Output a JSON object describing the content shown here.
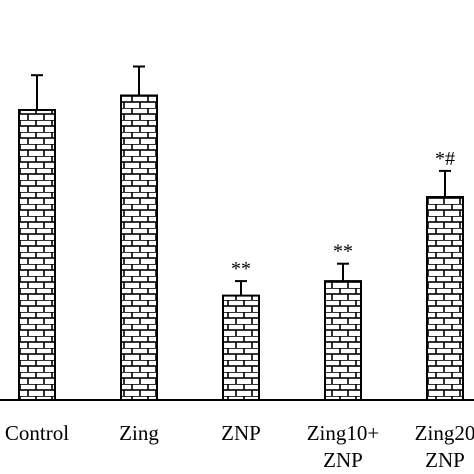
{
  "chart_data": {
    "type": "bar",
    "categories": [
      "Control",
      "Zing",
      "ZNP",
      "Zing10+\nZNP",
      "Zing20\nZNP"
    ],
    "values": [
      100,
      105,
      36,
      41,
      70
    ],
    "errors": [
      12,
      10,
      5,
      6,
      9
    ],
    "significance": [
      "",
      "",
      "**",
      "**",
      "*#"
    ],
    "xlabel": "",
    "ylabel": "",
    "ylim": [
      0,
      120
    ],
    "grid": false,
    "legend": "none",
    "bar_pattern": "brick",
    "colors": {
      "bar_fill": "#ffffff",
      "bar_stroke": "#000000",
      "axis": "#000000"
    }
  }
}
